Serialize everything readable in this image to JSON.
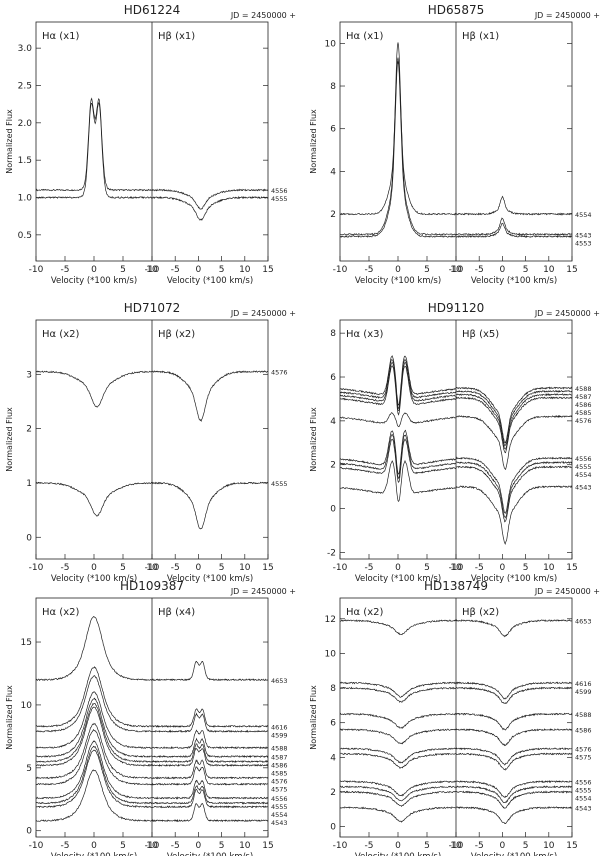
{
  "chart_data": [
    {
      "type": "line",
      "star": "HD61224",
      "title": "HD61224",
      "jd_label": "JD = 2450000 +",
      "ylabel": "Normalized Flux",
      "xlabel": "Velocity (*100 km/s)",
      "left_label": "Hα (x1)",
      "right_label": "Hβ (x1)",
      "ylim": [
        0.15,
        3.35
      ],
      "yticks": [
        0.5,
        1.0,
        1.5,
        2.0,
        2.5,
        3.0
      ],
      "ytick_labels": [
        "0.5",
        "1.0",
        "1.5",
        "2.0",
        "2.5",
        "3.0"
      ],
      "left_xticks": [
        "-10",
        "-5",
        "0",
        "5",
        "10"
      ],
      "right_xticks": [
        "-10",
        "-5",
        "0",
        "5",
        "10",
        "15"
      ],
      "xlim": [
        -10,
        15
      ],
      "series": [
        {
          "jd": "4556",
          "base": 1.1,
          "alpha_type": "emission_double",
          "alpha_depth": 1.25,
          "beta_type": "absorption",
          "beta_depth": 0.25
        },
        {
          "jd": "4555",
          "base": 1.0,
          "alpha_type": "emission_double",
          "alpha_depth": 1.3,
          "beta_type": "absorption",
          "beta_depth": 0.3
        }
      ]
    },
    {
      "type": "line",
      "star": "HD65875",
      "title": "HD65875",
      "jd_label": "JD = 2450000 +",
      "ylabel": "Normalized Flux",
      "xlabel": "Velocity (*100 km/s)",
      "left_label": "Hα (x1)",
      "right_label": "Hβ (x1)",
      "ylim": [
        -0.2,
        11.0
      ],
      "yticks": [
        2,
        4,
        6,
        8,
        10
      ],
      "ytick_labels": [
        "2",
        "4",
        "6",
        "8",
        "10"
      ],
      "left_xticks": [
        "-10",
        "-5",
        "0",
        "5",
        "10"
      ],
      "right_xticks": [
        "-10",
        "-5",
        "0",
        "5",
        "10",
        "15"
      ],
      "xlim": [
        -10,
        15
      ],
      "series": [
        {
          "jd": "4554",
          "base": 2.0,
          "alpha_type": "emission_peak",
          "alpha_depth": 7.3,
          "beta_type": "emission_peak",
          "beta_depth": 0.8
        },
        {
          "jd": "4543",
          "base": 1.05,
          "alpha_type": "emission_peak",
          "alpha_depth": 9.0,
          "beta_type": "emission_peak",
          "beta_depth": 0.75
        },
        {
          "jd": "4553",
          "base": 0.95,
          "alpha_type": "emission_peak",
          "alpha_depth": 8.2,
          "beta_type": "emission_peak",
          "beta_depth": 0.6
        }
      ]
    },
    {
      "type": "line",
      "star": "HD71072",
      "title": "HD71072",
      "jd_label": "JD = 2450000 +",
      "ylabel": "Normalized Flux",
      "xlabel": "Velocity (*100 km/s)",
      "left_label": "Hα (x2)",
      "right_label": "Hβ (x2)",
      "ylim": [
        -0.4,
        4.0
      ],
      "yticks": [
        0,
        1,
        2,
        3
      ],
      "ytick_labels": [
        "0",
        "1",
        "2",
        "3"
      ],
      "left_xticks": [
        "-10",
        "-5",
        "0",
        "5",
        "10"
      ],
      "right_xticks": [
        "-10",
        "-5",
        "0",
        "5",
        "10",
        "15"
      ],
      "xlim": [
        -10,
        15
      ],
      "series": [
        {
          "jd": "4576",
          "base": 3.05,
          "alpha_type": "absorption",
          "alpha_depth": 0.65,
          "beta_type": "absorption",
          "beta_depth": 0.9
        },
        {
          "jd": "4555",
          "base": 1.0,
          "alpha_type": "absorption",
          "alpha_depth": 0.6,
          "beta_type": "absorption",
          "beta_depth": 0.85
        }
      ]
    },
    {
      "type": "line",
      "star": "HD91120",
      "title": "HD91120",
      "jd_label": "JD = 2450000 +",
      "ylabel": "Normalized Flux",
      "xlabel": "Velocity (*100 km/s)",
      "left_label": "Hα (x3)",
      "right_label": "Hβ (x5)",
      "ylim": [
        -2.3,
        8.6
      ],
      "yticks": [
        -2,
        0,
        2,
        4,
        6,
        8
      ],
      "ytick_labels": [
        "-2",
        "0",
        "2",
        "4",
        "6",
        "8"
      ],
      "left_xticks": [
        "-10",
        "-5",
        "0",
        "5",
        "10"
      ],
      "right_xticks": [
        "-10",
        "-5",
        "0",
        "5",
        "10",
        "15"
      ],
      "xlim": [
        -10,
        15
      ],
      "series": [
        {
          "jd": "4588",
          "base": 5.5,
          "alpha_type": "shell_emission",
          "alpha_depth": 1.8,
          "beta_type": "broad_absorption",
          "beta_depth": 2.5
        },
        {
          "jd": "4587",
          "base": 5.35,
          "alpha_type": "shell_emission",
          "alpha_depth": 1.8,
          "beta_type": "broad_absorption",
          "beta_depth": 2.5
        },
        {
          "jd": "4586",
          "base": 5.2,
          "alpha_type": "shell_emission",
          "alpha_depth": 1.8,
          "beta_type": "broad_absorption",
          "beta_depth": 2.5
        },
        {
          "jd": "4585",
          "base": 5.05,
          "alpha_type": "shell_emission",
          "alpha_depth": 1.8,
          "beta_type": "broad_absorption",
          "beta_depth": 2.5
        },
        {
          "jd": "4576",
          "base": 4.2,
          "alpha_type": "shell_emission",
          "alpha_depth": 0.5,
          "beta_type": "broad_absorption",
          "beta_depth": 2.4
        },
        {
          "jd": "4556",
          "base": 2.3,
          "alpha_type": "shell_emission",
          "alpha_depth": 1.6,
          "beta_type": "broad_absorption",
          "beta_depth": 2.5
        },
        {
          "jd": "4555",
          "base": 2.1,
          "alpha_type": "shell_emission",
          "alpha_depth": 1.6,
          "beta_type": "broad_absorption",
          "beta_depth": 2.5
        },
        {
          "jd": "4554",
          "base": 1.9,
          "alpha_type": "shell_emission",
          "alpha_depth": 1.6,
          "beta_type": "broad_absorption",
          "beta_depth": 2.5
        },
        {
          "jd": "4543",
          "base": 1.0,
          "alpha_type": "shell_emission",
          "alpha_depth": 1.5,
          "beta_type": "broad_absorption",
          "beta_depth": 2.6
        }
      ]
    },
    {
      "type": "line",
      "star": "HD109387",
      "title": "HD109387",
      "jd_label": "JD = 2450000 +",
      "ylabel": "Normalized Flux",
      "xlabel": "Velocity (*100 km/s)",
      "left_label": "Hα (x2)",
      "right_label": "Hβ (x4)",
      "ylim": [
        -0.5,
        18.5
      ],
      "yticks": [
        0,
        5,
        10,
        15
      ],
      "ytick_labels": [
        "0",
        "5",
        "10",
        "15"
      ],
      "left_xticks": [
        "-10",
        "-5",
        "0",
        "5",
        "10"
      ],
      "right_xticks": [
        "-10",
        "-5",
        "0",
        "5",
        "10",
        "15"
      ],
      "xlim": [
        -10,
        15
      ],
      "series": [
        {
          "jd": "4653",
          "base": 12.0,
          "alpha_type": "emission_peak_broad",
          "alpha_depth": 5.0,
          "beta_type": "emission_double",
          "beta_depth": 1.5
        },
        {
          "jd": "4616",
          "base": 8.3,
          "alpha_type": "emission_peak_broad",
          "alpha_depth": 4.7,
          "beta_type": "emission_double",
          "beta_depth": 1.4
        },
        {
          "jd": "4599",
          "base": 7.9,
          "alpha_type": "emission_peak_broad",
          "alpha_depth": 4.4,
          "beta_type": "emission_double",
          "beta_depth": 1.4
        },
        {
          "jd": "4588",
          "base": 6.6,
          "alpha_type": "emission_peak_broad",
          "alpha_depth": 4.4,
          "beta_type": "emission_double",
          "beta_depth": 1.4
        },
        {
          "jd": "4587",
          "base": 5.9,
          "alpha_type": "emission_peak_broad",
          "alpha_depth": 4.6,
          "beta_type": "emission_double",
          "beta_depth": 1.4
        },
        {
          "jd": "4586",
          "base": 5.5,
          "alpha_type": "emission_peak_broad",
          "alpha_depth": 4.6,
          "beta_type": "emission_double",
          "beta_depth": 1.4
        },
        {
          "jd": "4585",
          "base": 5.2,
          "alpha_type": "emission_peak_broad",
          "alpha_depth": 4.6,
          "beta_type": "emission_double",
          "beta_depth": 1.4
        },
        {
          "jd": "4576",
          "base": 4.2,
          "alpha_type": "emission_peak_broad",
          "alpha_depth": 4.3,
          "beta_type": "emission_double",
          "beta_depth": 1.4
        },
        {
          "jd": "4575",
          "base": 3.7,
          "alpha_type": "emission_peak_broad",
          "alpha_depth": 4.3,
          "beta_type": "emission_double",
          "beta_depth": 1.4
        },
        {
          "jd": "4556",
          "base": 2.6,
          "alpha_type": "emission_peak_broad",
          "alpha_depth": 4.5,
          "beta_type": "emission_double",
          "beta_depth": 1.4
        },
        {
          "jd": "4555",
          "base": 2.2,
          "alpha_type": "emission_peak_broad",
          "alpha_depth": 4.5,
          "beta_type": "emission_double",
          "beta_depth": 1.4
        },
        {
          "jd": "4554",
          "base": 1.9,
          "alpha_type": "emission_peak_broad",
          "alpha_depth": 4.5,
          "beta_type": "emission_double",
          "beta_depth": 1.4
        },
        {
          "jd": "4543",
          "base": 0.8,
          "alpha_type": "emission_peak_broad",
          "alpha_depth": 4.0,
          "beta_type": "emission_double",
          "beta_depth": 1.4
        }
      ]
    },
    {
      "type": "line",
      "star": "HD138749",
      "title": "HD138749",
      "jd_label": "JD = 2450000 +",
      "ylabel": "Normalized Flux",
      "xlabel": "Velocity (*100 km/s)",
      "left_label": "Hα (x2)",
      "right_label": "Hβ (x2)",
      "ylim": [
        -0.6,
        13.2
      ],
      "yticks": [
        0,
        2,
        4,
        6,
        8,
        10,
        12
      ],
      "ytick_labels": [
        "0",
        "2",
        "4",
        "6",
        "8",
        "10",
        "12"
      ],
      "left_xticks": [
        "-10",
        "-5",
        "0",
        "5",
        "10"
      ],
      "right_xticks": [
        "-10",
        "-5",
        "0",
        "5",
        "10",
        "15"
      ],
      "xlim": [
        -10,
        15
      ],
      "series": [
        {
          "jd": "4653",
          "base": 11.9,
          "alpha_type": "absorption",
          "alpha_depth": 0.8,
          "beta_type": "absorption",
          "beta_depth": 0.9
        },
        {
          "jd": "4616",
          "base": 8.3,
          "alpha_type": "absorption",
          "alpha_depth": 0.8,
          "beta_type": "absorption",
          "beta_depth": 0.9
        },
        {
          "jd": "4599",
          "base": 8.0,
          "alpha_type": "absorption",
          "alpha_depth": 0.8,
          "beta_type": "absorption",
          "beta_depth": 0.9
        },
        {
          "jd": "4588",
          "base": 6.5,
          "alpha_type": "absorption",
          "alpha_depth": 0.8,
          "beta_type": "absorption",
          "beta_depth": 0.9
        },
        {
          "jd": "4586",
          "base": 5.6,
          "alpha_type": "absorption",
          "alpha_depth": 0.8,
          "beta_type": "absorption",
          "beta_depth": 0.9
        },
        {
          "jd": "4576",
          "base": 4.5,
          "alpha_type": "absorption",
          "alpha_depth": 0.8,
          "beta_type": "absorption",
          "beta_depth": 0.9
        },
        {
          "jd": "4575",
          "base": 4.2,
          "alpha_type": "absorption",
          "alpha_depth": 0.8,
          "beta_type": "absorption",
          "beta_depth": 0.9
        },
        {
          "jd": "4556",
          "base": 2.6,
          "alpha_type": "absorption",
          "alpha_depth": 0.8,
          "beta_type": "absorption",
          "beta_depth": 0.9
        },
        {
          "jd": "4555",
          "base": 2.3,
          "alpha_type": "absorption",
          "alpha_depth": 0.8,
          "beta_type": "absorption",
          "beta_depth": 0.9
        },
        {
          "jd": "4554",
          "base": 2.0,
          "alpha_type": "absorption",
          "alpha_depth": 0.8,
          "beta_type": "absorption",
          "beta_depth": 0.9
        },
        {
          "jd": "4543",
          "base": 1.1,
          "alpha_type": "absorption",
          "alpha_depth": 0.8,
          "beta_type": "absorption",
          "beta_depth": 0.9
        }
      ]
    }
  ]
}
